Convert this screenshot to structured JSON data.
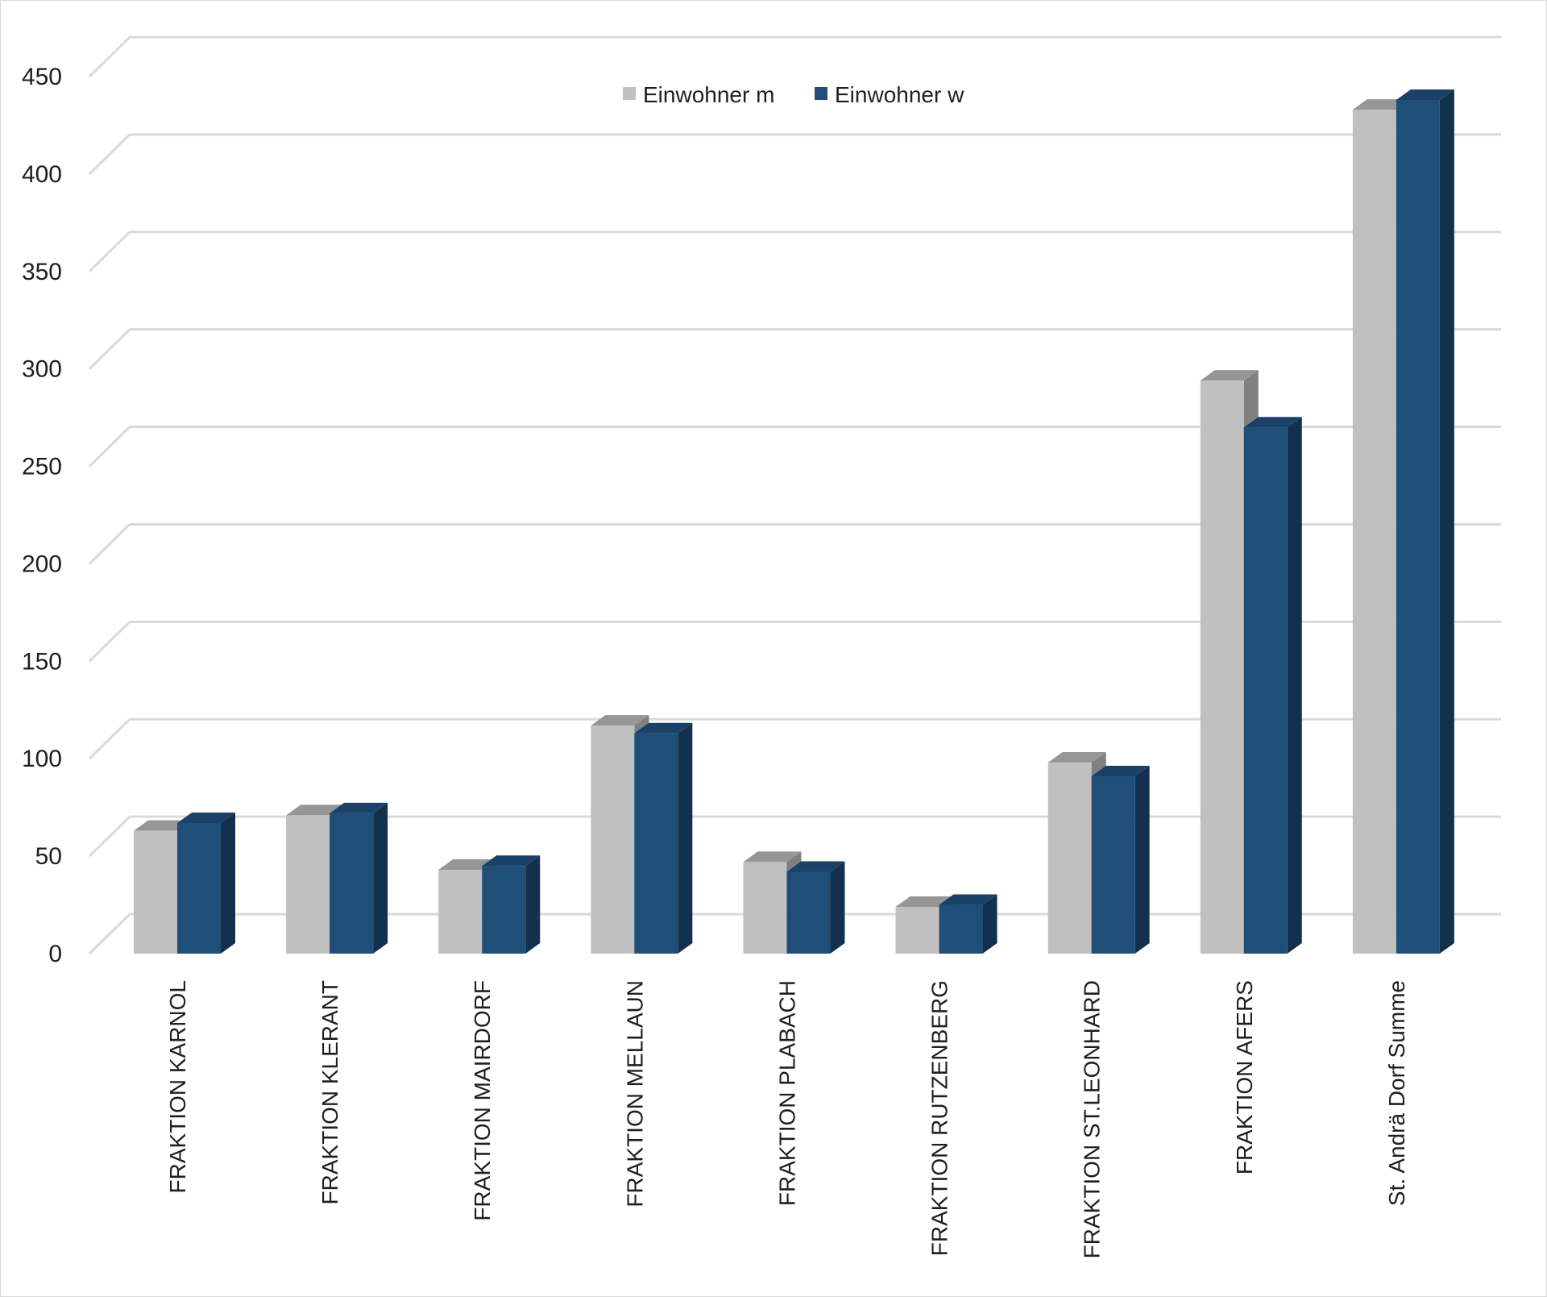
{
  "chart_data": {
    "type": "bar",
    "categories": [
      "FRAKTION KARNOL",
      "FRAKTION KLERANT",
      "FRAKTION MAIRDORF",
      "FRAKTION MELLAUN",
      "FRAKTION PLABACH",
      "FRAKTION RUTZENBERG",
      "FRAKTION ST.LEONHARD",
      "FRAKTION AFERS",
      "St. Andrä Dorf Summe"
    ],
    "series": [
      {
        "name": "Einwohner m",
        "color": "#c0c0c0",
        "side_color": "#808080",
        "top_color": "#969696",
        "values": [
          63,
          71,
          43,
          117,
          47,
          24,
          98,
          294,
          433
        ]
      },
      {
        "name": "Einwohner w",
        "color": "#1f4e79",
        "side_color": "#13314f",
        "top_color": "#1a4168",
        "values": [
          67,
          72,
          45,
          113,
          42,
          25,
          91,
          270,
          438
        ]
      }
    ],
    "y_ticks": [
      0,
      50,
      100,
      150,
      200,
      250,
      300,
      350,
      400,
      450
    ],
    "ylim": [
      0,
      450
    ],
    "grid": true,
    "legend_position": "top-center"
  }
}
